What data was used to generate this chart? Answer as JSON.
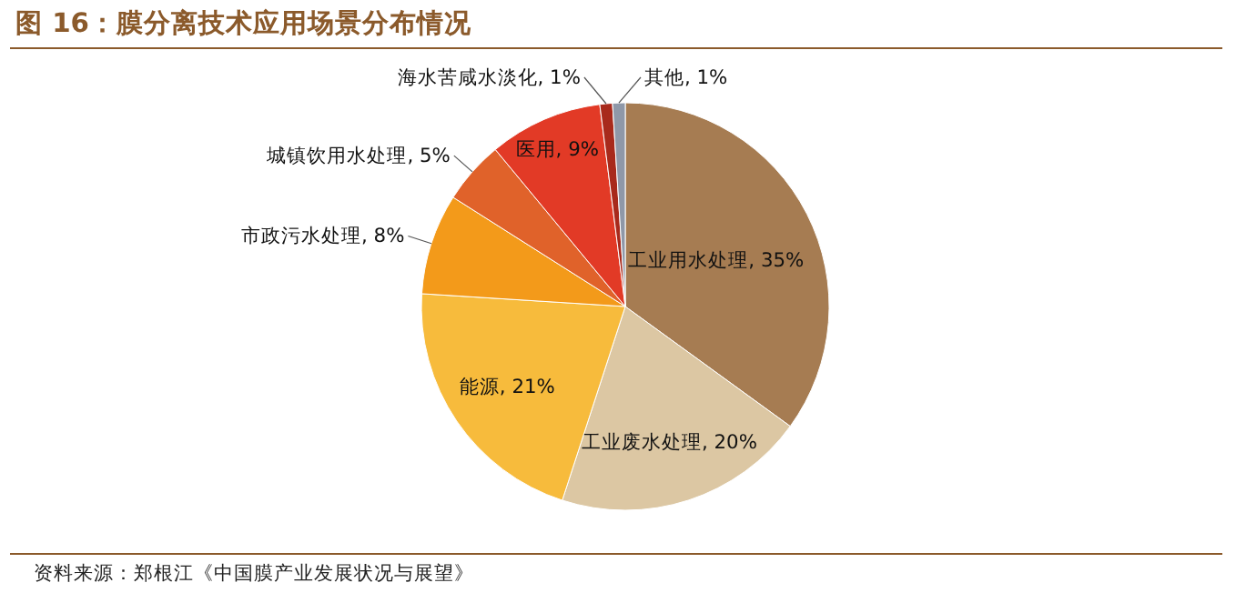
{
  "chart_data": {
    "type": "pie",
    "title": "图 16：膜分离技术应用场景分布情况",
    "categories": [
      "工业用水处理",
      "工业废水处理",
      "能源",
      "市政污水处理",
      "城镇饮用水处理",
      "医用",
      "海水苦咸水淡化",
      "其他"
    ],
    "values": [
      35,
      20,
      21,
      8,
      5,
      9,
      1,
      1
    ],
    "value_labels": [
      "35%",
      "20%",
      "21%",
      "8%",
      "5%",
      "9%",
      "1%",
      "1%"
    ],
    "colors": [
      "#a67c52",
      "#dcc7a3",
      "#f7bb3c",
      "#f39a1a",
      "#e0622a",
      "#e23a26",
      "#a82a1c",
      "#8f98a8"
    ],
    "annotations": [
      "资料来源：郑根江《中国膜产业发展状况与展望》"
    ]
  }
}
